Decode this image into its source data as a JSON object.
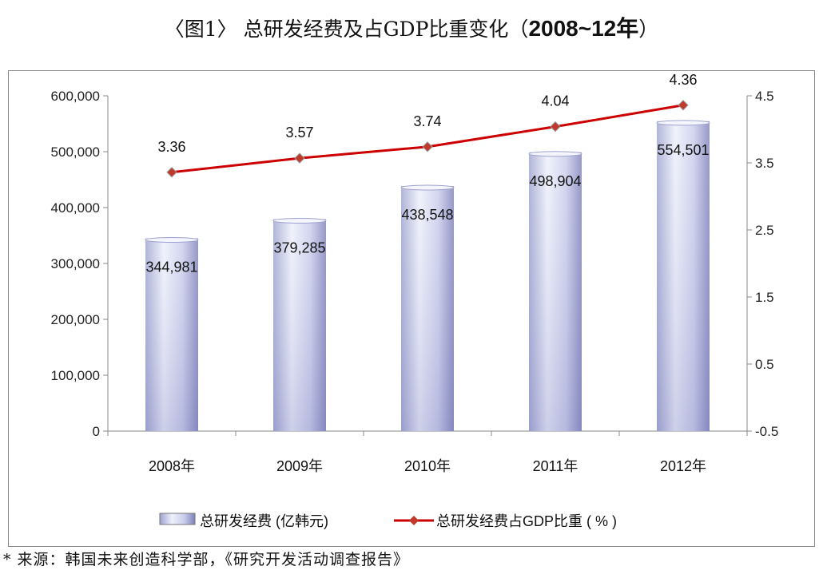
{
  "title": {
    "prefix": "〈图1〉 总研发经费及占GDP比重变化（",
    "years": "2008~12年",
    "suffix": "）"
  },
  "source": "* 来源：韩国未来创造科学部，《研究开发活动调查报告》",
  "colors": {
    "bar_light": "#e8ebfa",
    "bar_dark": "#8b90c4",
    "line": "#cc0000",
    "marker": "#c0392b",
    "axis": "#888888"
  },
  "chart_data": {
    "type": "bar+line",
    "categories": [
      "2008年",
      "2009年",
      "2010年",
      "2011年",
      "2012年"
    ],
    "series": [
      {
        "name": "总研发经费 (亿韩元)",
        "type": "bar",
        "axis": "left",
        "values": [
          344981,
          379285,
          438548,
          498904,
          554501
        ],
        "labels": [
          "344,981",
          "379,285",
          "438,548",
          "498,904",
          "554,501"
        ]
      },
      {
        "name": "总研发经费占GDP比重 ( % )",
        "type": "line",
        "axis": "right",
        "values": [
          3.36,
          3.57,
          3.74,
          4.04,
          4.36
        ],
        "labels": [
          "3.36",
          "3.57",
          "3.74",
          "4.04",
          "4.36"
        ]
      }
    ],
    "left_axis": {
      "range": [
        0,
        600000
      ],
      "ticks": [
        "0",
        "100,000",
        "200,000",
        "300,000",
        "400,000",
        "500,000",
        "600,000"
      ]
    },
    "right_axis": {
      "range": [
        -0.5,
        4.5
      ],
      "ticks": [
        "-0.5",
        "0.5",
        "1.5",
        "2.5",
        "3.5",
        "4.5"
      ]
    },
    "legend": "bottom",
    "grid": false
  }
}
